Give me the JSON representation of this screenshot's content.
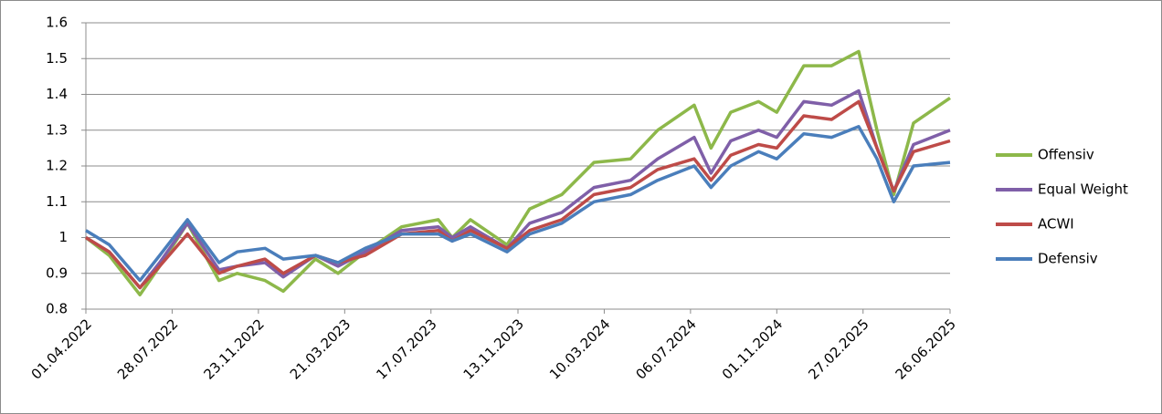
{
  "chart_data": {
    "type": "line",
    "x": [
      "01.04.2022",
      "03.05.2022",
      "14.06.2022",
      "11.07.2022",
      "18.08.2022",
      "30.09.2022",
      "25.10.2022",
      "02.12.2022",
      "27.12.2022",
      "09.02.2023",
      "12.03.2023",
      "18.04.2023",
      "07.06.2023",
      "27.07.2023",
      "15.08.2023",
      "09.09.2023",
      "29.10.2023",
      "29.11.2023",
      "12.01.2024",
      "25.02.2024",
      "15.04.2024",
      "22.05.2024",
      "11.07.2024",
      "03.08.2024",
      "30.08.2024",
      "07.10.2024",
      "01.11.2024",
      "08.12.2024",
      "15.01.2025",
      "21.02.2025",
      "18.03.2025",
      "10.04.2025",
      "07.05.2025",
      "26.06.2025"
    ],
    "series": [
      {
        "name": "Offensiv",
        "color": "#8db84a",
        "values": [
          1.0,
          0.95,
          0.84,
          0.92,
          1.04,
          0.88,
          0.9,
          0.88,
          0.85,
          0.94,
          0.9,
          0.96,
          1.03,
          1.05,
          1.0,
          1.05,
          0.98,
          1.08,
          1.12,
          1.21,
          1.22,
          1.3,
          1.37,
          1.25,
          1.35,
          1.38,
          1.35,
          1.48,
          1.48,
          1.52,
          1.3,
          1.12,
          1.32,
          1.39
        ]
      },
      {
        "name": "Equal Weight",
        "color": "#7f5fa8",
        "values": [
          1.0,
          0.96,
          0.86,
          0.93,
          1.04,
          0.91,
          0.92,
          0.93,
          0.89,
          0.95,
          0.92,
          0.96,
          1.02,
          1.03,
          1.0,
          1.03,
          0.97,
          1.04,
          1.07,
          1.14,
          1.16,
          1.22,
          1.28,
          1.18,
          1.27,
          1.3,
          1.28,
          1.38,
          1.37,
          1.41,
          1.25,
          1.13,
          1.26,
          1.3
        ]
      },
      {
        "name": "ACWI",
        "color": "#be4b48",
        "values": [
          1.0,
          0.96,
          0.86,
          0.92,
          1.01,
          0.9,
          0.92,
          0.94,
          0.9,
          0.95,
          0.93,
          0.95,
          1.01,
          1.02,
          0.99,
          1.02,
          0.97,
          1.02,
          1.05,
          1.12,
          1.14,
          1.19,
          1.22,
          1.16,
          1.23,
          1.26,
          1.25,
          1.34,
          1.33,
          1.38,
          1.25,
          1.13,
          1.24,
          1.27
        ]
      },
      {
        "name": "Defensiv",
        "color": "#4a7ebb",
        "values": [
          1.02,
          0.98,
          0.88,
          0.95,
          1.05,
          0.93,
          0.96,
          0.97,
          0.94,
          0.95,
          0.93,
          0.97,
          1.01,
          1.01,
          0.99,
          1.01,
          0.96,
          1.01,
          1.04,
          1.1,
          1.12,
          1.16,
          1.2,
          1.14,
          1.2,
          1.24,
          1.22,
          1.29,
          1.28,
          1.31,
          1.22,
          1.1,
          1.2,
          1.21
        ]
      }
    ],
    "xticks": [
      "01.04.2022",
      "28.07.2022",
      "23.11.2022",
      "21.03.2023",
      "17.07.2023",
      "13.11.2023",
      "10.03.2024",
      "06.07.2024",
      "01.11.2024",
      "27.02.2025",
      "26.06.2025"
    ],
    "ylim": [
      0.8,
      1.6
    ],
    "yticks": [
      0.8,
      0.9,
      1,
      1.1,
      1.2,
      1.3,
      1.4,
      1.5,
      1.6
    ],
    "grid": true
  }
}
